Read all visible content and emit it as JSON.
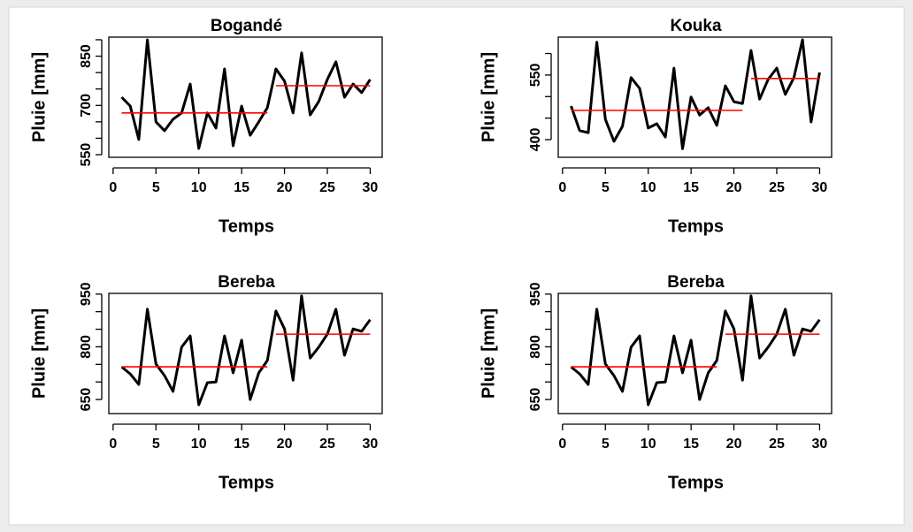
{
  "chart_data": [
    {
      "type": "line",
      "title": "Bogandé",
      "xlabel": "Temps",
      "ylabel": "Pluie [mm]",
      "x": [
        1,
        2,
        3,
        4,
        5,
        6,
        7,
        8,
        9,
        10,
        11,
        12,
        13,
        14,
        15,
        16,
        17,
        18,
        19,
        20,
        21,
        22,
        23,
        24,
        25,
        26,
        27,
        28,
        29,
        30
      ],
      "series": [
        {
          "color": "#000000",
          "values": [
            725,
            698,
            596,
            900,
            650,
            623,
            658,
            677,
            765,
            569,
            677,
            631,
            811,
            577,
            698,
            609,
            650,
            693,
            811,
            774,
            677,
            860,
            671,
            712,
            779,
            833,
            725,
            765,
            739,
            779
          ]
        }
      ],
      "segments": [
        {
          "x0": 1,
          "x1": 18,
          "y": 677,
          "color": "#ff0000"
        },
        {
          "x0": 19,
          "x1": 30,
          "y": 760,
          "color": "#ff0000"
        }
      ],
      "xlim": [
        -0.5,
        31.4
      ],
      "xticks": [
        0,
        5,
        10,
        15,
        20,
        25,
        30
      ],
      "ylim": [
        542,
        908
      ],
      "yticks": [
        550,
        700,
        850
      ],
      "minor_yticks": [
        600,
        650,
        750,
        800,
        900
      ]
    },
    {
      "type": "line",
      "title": "Kouka",
      "xlabel": "Temps",
      "ylabel": "Pluie [mm]",
      "x": [
        1,
        2,
        3,
        4,
        5,
        6,
        7,
        8,
        9,
        10,
        11,
        12,
        13,
        14,
        15,
        16,
        17,
        18,
        19,
        20,
        21,
        22,
        23,
        24,
        25,
        26,
        27,
        28,
        29,
        30
      ],
      "series": [
        {
          "color": "#000000",
          "values": [
            478,
            421,
            416,
            626,
            447,
            396,
            431,
            544,
            519,
            427,
            437,
            406,
            566,
            379,
            499,
            457,
            474,
            433,
            525,
            488,
            484,
            607,
            494,
            540,
            566,
            505,
            544,
            632,
            441,
            556
          ]
        }
      ],
      "segments": [
        {
          "x0": 1,
          "x1": 21,
          "y": 468,
          "color": "#ff0000"
        },
        {
          "x0": 22,
          "x1": 30,
          "y": 542,
          "color": "#ff0000"
        }
      ],
      "xlim": [
        -0.5,
        31.4
      ],
      "xticks": [
        0,
        5,
        10,
        15,
        20,
        25,
        30
      ],
      "ylim": [
        359,
        638
      ],
      "yticks": [
        400,
        550
      ],
      "minor_yticks": [
        450,
        500,
        600
      ]
    },
    {
      "type": "line",
      "title": "Bereba",
      "xlabel": "Temps",
      "ylabel": "Pluie [mm]",
      "x": [
        1,
        2,
        3,
        4,
        5,
        6,
        7,
        8,
        9,
        10,
        11,
        12,
        13,
        14,
        15,
        16,
        17,
        18,
        19,
        20,
        21,
        22,
        23,
        24,
        25,
        26,
        27,
        28,
        29,
        30
      ],
      "series": [
        {
          "color": "#000000",
          "values": [
            743,
            723,
            693,
            907,
            751,
            718,
            673,
            799,
            831,
            635,
            698,
            700,
            831,
            726,
            819,
            650,
            726,
            761,
            902,
            851,
            705,
            945,
            768,
            799,
            836,
            907,
            776,
            851,
            844,
            877
          ]
        }
      ],
      "segments": [
        {
          "x0": 1,
          "x1": 18,
          "y": 743,
          "color": "#ff0000"
        },
        {
          "x0": 19,
          "x1": 30,
          "y": 836,
          "color": "#ff0000"
        }
      ],
      "xlim": [
        -0.5,
        31.4
      ],
      "xticks": [
        0,
        5,
        10,
        15,
        20,
        25,
        30
      ],
      "ylim": [
        610,
        952
      ],
      "yticks": [
        650,
        800,
        950
      ],
      "minor_yticks": [
        700,
        750,
        850,
        900
      ]
    },
    {
      "type": "line",
      "title": "Bereba",
      "xlabel": "Temps",
      "ylabel": "Pluie [mm]",
      "x": [
        1,
        2,
        3,
        4,
        5,
        6,
        7,
        8,
        9,
        10,
        11,
        12,
        13,
        14,
        15,
        16,
        17,
        18,
        19,
        20,
        21,
        22,
        23,
        24,
        25,
        26,
        27,
        28,
        29,
        30
      ],
      "series": [
        {
          "color": "#000000",
          "values": [
            743,
            723,
            693,
            907,
            751,
            718,
            673,
            799,
            831,
            635,
            698,
            700,
            831,
            726,
            819,
            650,
            726,
            761,
            902,
            851,
            705,
            945,
            768,
            799,
            836,
            907,
            776,
            851,
            844,
            877
          ]
        }
      ],
      "segments": [
        {
          "x0": 1,
          "x1": 18,
          "y": 743,
          "color": "#ff0000"
        },
        {
          "x0": 19,
          "x1": 30,
          "y": 836,
          "color": "#ff0000"
        }
      ],
      "xlim": [
        -0.5,
        31.4
      ],
      "xticks": [
        0,
        5,
        10,
        15,
        20,
        25,
        30
      ],
      "ylim": [
        610,
        952
      ],
      "yticks": [
        650,
        800,
        950
      ],
      "minor_yticks": [
        700,
        750,
        850,
        900
      ]
    }
  ]
}
